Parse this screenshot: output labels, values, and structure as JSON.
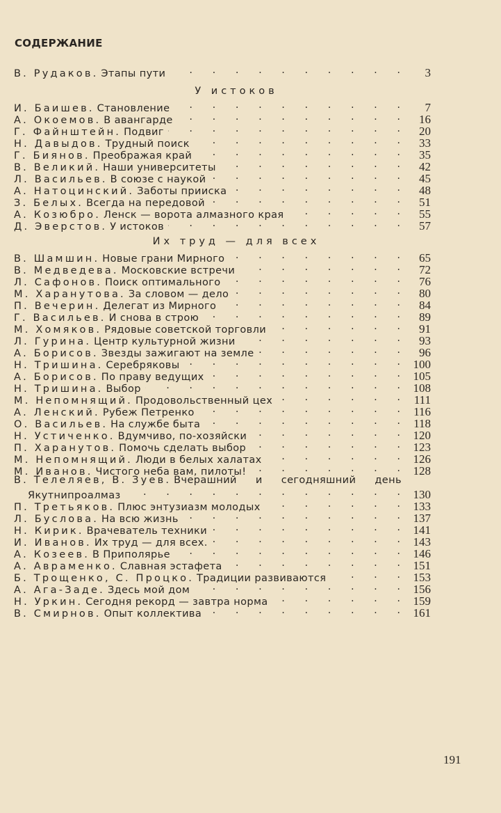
{
  "title": "СОДЕРЖАНИЕ",
  "intro": {
    "author": "В. Рудаков.",
    "title": "Этапы пути",
    "page": "3"
  },
  "sections": [
    {
      "heading": "У истоков",
      "entries": [
        {
          "author": "И. Баишев.",
          "title": "Становление",
          "page": "7"
        },
        {
          "author": "А. Окоемов.",
          "title": "В авангарде",
          "page": "16"
        },
        {
          "author": "Г. Файнштейн.",
          "title": "Подвиг",
          "page": "20"
        },
        {
          "author": "Н. Давыдов.",
          "title": "Трудный поиск",
          "page": "33"
        },
        {
          "author": "Г. Биянов.",
          "title": "Преображая край",
          "page": "35"
        },
        {
          "author": "В. Великий.",
          "title": "Наши университеты",
          "page": "42"
        },
        {
          "author": "Л. Васильев.",
          "title": "В союзе с наукой",
          "page": "45"
        },
        {
          "author": "А. Натоцинский.",
          "title": "Заботы прииска",
          "page": "48"
        },
        {
          "author": "З. Белых.",
          "title": "Всегда на передовой",
          "page": "51"
        },
        {
          "author": "А. Козюбро.",
          "title": "Ленск — ворота алмазного края",
          "page": "55"
        },
        {
          "author": "Д. Эверстов.",
          "title": "У истоков",
          "page": "57"
        }
      ]
    },
    {
      "heading": "Их труд — для всех",
      "entries": [
        {
          "author": "В. Шамшин.",
          "title": "Новые грани Мирного",
          "page": "65"
        },
        {
          "author": "В. Медведева.",
          "title": "Московские встречи",
          "page": "72"
        },
        {
          "author": "Л. Сафонов.",
          "title": "Поиск оптимального",
          "page": "76"
        },
        {
          "author": "М. Харанутова.",
          "title": "За словом — дело",
          "page": "80"
        },
        {
          "author": "П. Вечерин.",
          "title": "Делегат из Мирного",
          "page": "84"
        },
        {
          "author": "Г. Васильев.",
          "title": "И снова в строю",
          "page": "89"
        },
        {
          "author": "М. Хомяков.",
          "title": "Рядовые советской торговли",
          "page": "91"
        },
        {
          "author": "Л. Гурина.",
          "title": "Центр культурной жизни",
          "page": "93"
        },
        {
          "author": "А. Борисов.",
          "title": "Звезды зажигают на земле",
          "page": "96"
        },
        {
          "author": "Н. Тришина.",
          "title": "Серебряковы",
          "page": "100"
        },
        {
          "author": "А. Борисов.",
          "title": "По праву ведущих",
          "page": "105"
        },
        {
          "author": "Н. Тришина.",
          "title": "Выбор",
          "page": "108"
        },
        {
          "author": "М. Непомнящий.",
          "title": "Продовольственный цех",
          "page": "111"
        },
        {
          "author": "А. Ленский.",
          "title": "Рубеж Петренко",
          "page": "116"
        },
        {
          "author": "О. Васильев.",
          "title": "На службе быта",
          "page": "118"
        },
        {
          "author": "Н. Устиченко.",
          "title": "Вдумчиво, по-хозяйски",
          "page": "120"
        },
        {
          "author": "П. Харанутов.",
          "title": "Помочь сделать выбор",
          "page": "123"
        },
        {
          "author": "М. Непомнящий.",
          "title": "Люди в белых халатах",
          "page": "126"
        },
        {
          "author": "М. Иванов.",
          "title": "Чистого неба вам, пилоты!",
          "page": "128"
        },
        {
          "author": "В. Телеляев, В. Зуев.",
          "title": "Вчерашний и сегодняшний день",
          "title_cont": "Якутнипроалмаз",
          "page": "130"
        },
        {
          "author": "П. Третьяков.",
          "title": "Плюс энтузиазм молодых",
          "page": "133"
        },
        {
          "author": "Л. Буслова.",
          "title": "На всю жизнь",
          "page": "137"
        },
        {
          "author": "Н. Кирик.",
          "title": "Врачеватель техники",
          "page": "141"
        },
        {
          "author": "И. Иванов.",
          "title": "Их труд — для всех.",
          "page": "143"
        },
        {
          "author": "А. Козеев.",
          "title": "В Приполярье",
          "page": "146"
        },
        {
          "author": "А. Авраменко.",
          "title": "Славная эстафета",
          "page": "151"
        },
        {
          "author": "Б. Трощенко, С. Процко.",
          "title": "Традиции развиваются",
          "page": "153"
        },
        {
          "author": "А. Ага-Заде.",
          "title": "Здесь мой дом",
          "page": "156"
        },
        {
          "author": "Н. Уркин.",
          "title": "Сегодня рекорд — завтра норма",
          "page": "159"
        },
        {
          "author": "В. Смирнов.",
          "title": "Опыт коллектива",
          "page": "161"
        }
      ]
    }
  ],
  "page_number": "191"
}
